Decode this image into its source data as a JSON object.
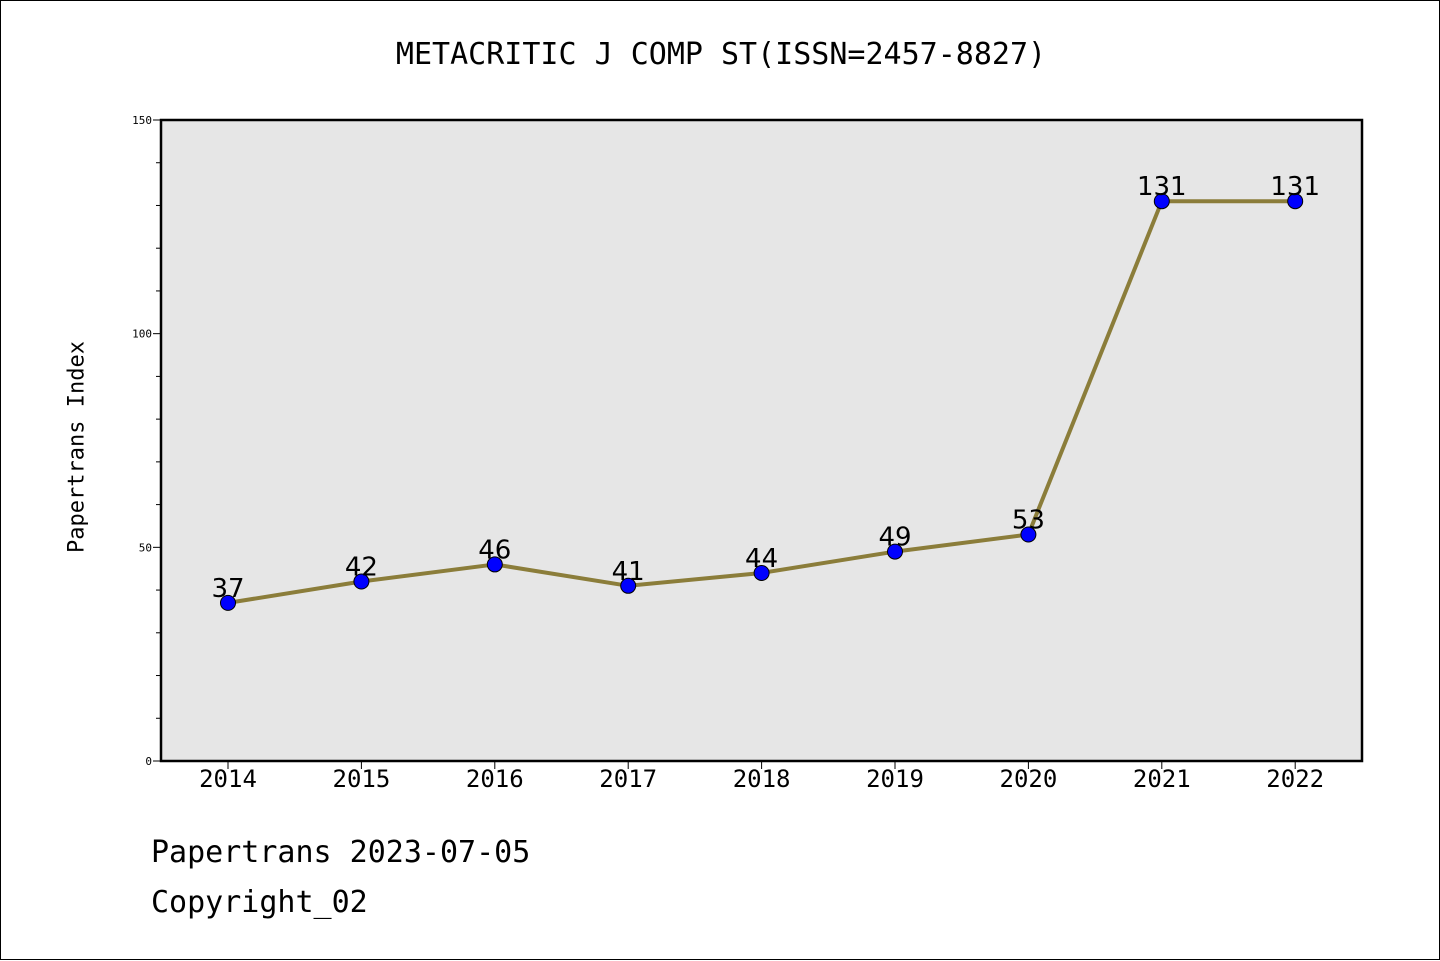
{
  "chart_data": {
    "type": "line",
    "title": "METACRITIC J COMP ST(ISSN=2457-8827)",
    "xlabel": "",
    "ylabel": "Papertrans Index",
    "categories": [
      "2014",
      "2015",
      "2016",
      "2017",
      "2018",
      "2019",
      "2020",
      "2021",
      "2022"
    ],
    "series": [
      {
        "values": [
          37,
          42,
          46,
          41,
          44,
          49,
          53,
          131,
          131
        ]
      }
    ],
    "ylim": [
      0,
      150
    ],
    "yticks": [
      0,
      50,
      100,
      150
    ],
    "grid": false,
    "data_labels": true,
    "colors": {
      "line": "#8b7d3a",
      "marker": "#0000ff",
      "plot_background": "#e6e6e6"
    }
  },
  "footer": {
    "date_line": "Papertrans 2023-07-05",
    "copyright_line": "Copyright_02"
  }
}
